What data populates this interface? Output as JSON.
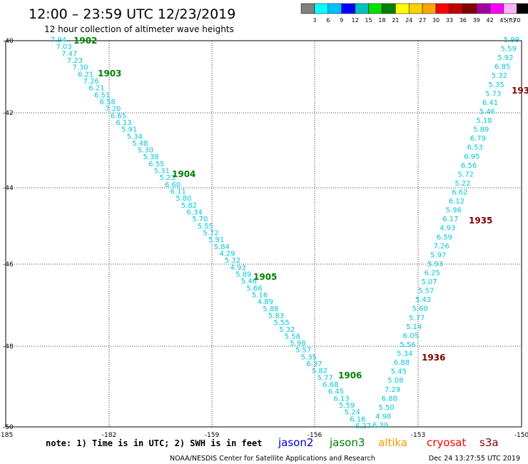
{
  "header": {
    "title": "12:00 – 23:59 UTC 12/23/2019",
    "subtitle": "12 hour collection of altimeter wave heights"
  },
  "legend": {
    "unit": "(ft)",
    "swatches": [
      {
        "color": "#808080",
        "label": "3"
      },
      {
        "color": "#00ffff",
        "label": "6"
      },
      {
        "color": "#00bfff",
        "label": "9"
      },
      {
        "color": "#0000ff",
        "label": "12"
      },
      {
        "color": "#00c0c0",
        "label": "15"
      },
      {
        "color": "#00e000",
        "label": "18"
      },
      {
        "color": "#008000",
        "label": "21"
      },
      {
        "color": "#ffff00",
        "label": "24"
      },
      {
        "color": "#ffd000",
        "label": "27"
      },
      {
        "color": "#ffa500",
        "label": "30"
      },
      {
        "color": "#ff0000",
        "label": "33"
      },
      {
        "color": "#c00000",
        "label": "36"
      },
      {
        "color": "#800000",
        "label": "39"
      },
      {
        "color": "#a000a0",
        "label": "42"
      },
      {
        "color": "#ff00ff",
        "label": "45"
      },
      {
        "color": "#ffb0ff",
        "label": "70"
      },
      {
        "color": "#000000",
        "label": ""
      }
    ]
  },
  "axes": {
    "xticks": [
      "-185",
      "-182",
      "-159",
      "-156",
      "-153",
      "-150"
    ],
    "yticks": [
      "-40",
      "-42",
      "-44",
      "-46",
      "-48",
      "-50"
    ]
  },
  "footer": {
    "note": "note: 1) Time is in UTC; 2) SWH is in feet",
    "satellites": [
      {
        "name": "jason2",
        "color": "#0000cc"
      },
      {
        "name": "jason3",
        "color": "#008000"
      },
      {
        "name": "altika",
        "color": "#ff9900"
      },
      {
        "name": "cryosat",
        "color": "#ff0000"
      },
      {
        "name": "s3a",
        "color": "#800000"
      }
    ],
    "credit": "NOAA/NESDIS Center for Satellite Applications and Research",
    "timestamp": "Dec 24 13:27:55 UTC 2019"
  },
  "track_colors": {
    "swh": "#00c8d8",
    "time_green": "#008000",
    "time_red": "#800000"
  },
  "track_desc": {
    "values": [
      "7.94",
      "7.03",
      "7.47",
      "7.23",
      "7.30",
      "6.21",
      "7.26",
      "6.21",
      "6.51",
      "6.58",
      "7.20",
      "6.65",
      "6.13",
      "5.91",
      "5.34",
      "5.48",
      "5.30",
      "5.38",
      "6.55",
      "5.31",
      "5.23",
      "6.60",
      "6.11",
      "5.80",
      "5.82",
      "6.34",
      "5.70",
      "5.55",
      "5.72",
      "5.91",
      "5.84",
      "4.29",
      "5.32",
      "4.93",
      "5.89",
      "5.46",
      "5.66",
      "5.16",
      "4.89",
      "5.88",
      "5.83",
      "5.55",
      "5.32",
      "5.58",
      "5.98",
      "5.57",
      "5.35",
      "6.37",
      "5.82",
      "5.77",
      "6.68",
      "6.45",
      "6.13",
      "5.59",
      "5.24",
      "6.16",
      "6.27"
    ],
    "times": [
      "1902",
      "1903",
      "1904",
      "1905",
      "1906"
    ]
  },
  "track_asc": {
    "values": [
      "6.39",
      "4.98",
      "5.50",
      "6.88",
      "7.29",
      "5.08",
      "5.45",
      "6.88",
      "5.34",
      "5.56",
      "6.05",
      "5.14",
      "5.77",
      "5.60",
      "5.43",
      "5.57",
      "5.07",
      "6.25",
      "5.93",
      "5.97",
      "7.26",
      "6.59",
      "4.93",
      "6.17",
      "5.96",
      "6.12",
      "6.62",
      "5.22",
      "5.72",
      "6.56",
      "6.95",
      "6.53",
      "6.79",
      "5.89",
      "5.18",
      "5.46",
      "6.41",
      "5.73",
      "5.35",
      "5.32",
      "6.85",
      "5.92",
      "5.59",
      "5.99"
    ],
    "times": [
      "1936",
      "1935",
      "193"
    ]
  }
}
